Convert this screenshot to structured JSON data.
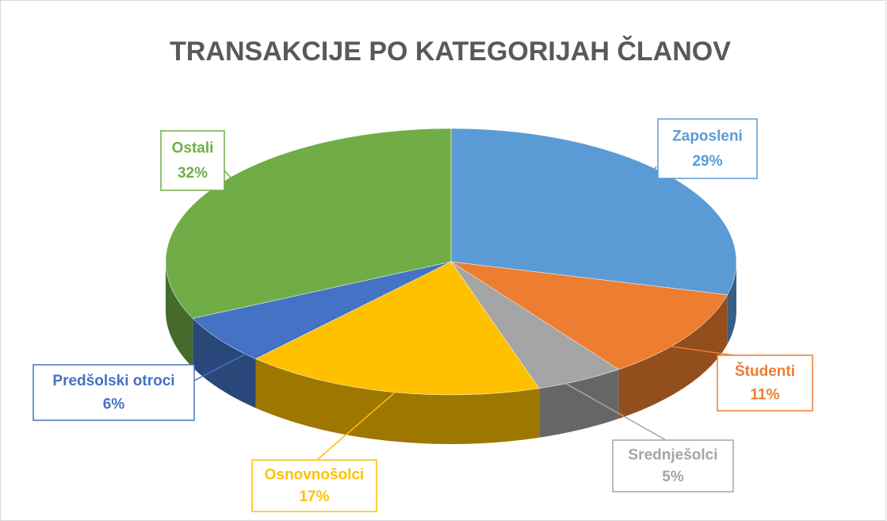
{
  "chart_data": {
    "type": "pie",
    "title": "TRANSAKCIJE PO KATEGORIJAH ČLANOV",
    "categories": [
      "Zaposleni",
      "Študenti",
      "Srednješolci",
      "Osnovnošolci",
      "Predšolski otroci",
      "Ostali"
    ],
    "values": [
      29,
      11,
      5,
      17,
      6,
      32
    ],
    "value_labels": [
      "29%",
      "11%",
      "5%",
      "17%",
      "6%",
      "32%"
    ],
    "colors": [
      "#5b9bd5",
      "#ed7d31",
      "#a5a5a5",
      "#ffc000",
      "#4472c4",
      "#70ad47"
    ]
  }
}
